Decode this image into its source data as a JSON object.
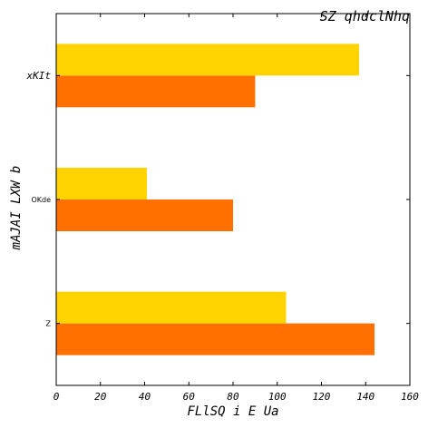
{
  "chart_data": {
    "type": "bar",
    "orientation": "horizontal",
    "title": "SZ qhdclNhq",
    "xlabel": "FLlSQ i E Ua",
    "ylabel": "mAJAI LXW b",
    "categories": [
      "Z",
      "OKde",
      "xKIt"
    ],
    "series": [
      {
        "values": [
          144,
          80,
          90
        ],
        "color": "#ff7000"
      },
      {
        "values": [
          104,
          41,
          137
        ],
        "color": "#ffd300"
      }
    ],
    "xlim": [
      0,
      160
    ],
    "xticks": [
      "0",
      "20",
      "40",
      "60",
      "80",
      "100",
      "120",
      "140",
      "160"
    ],
    "grid": false,
    "legend": "none"
  }
}
